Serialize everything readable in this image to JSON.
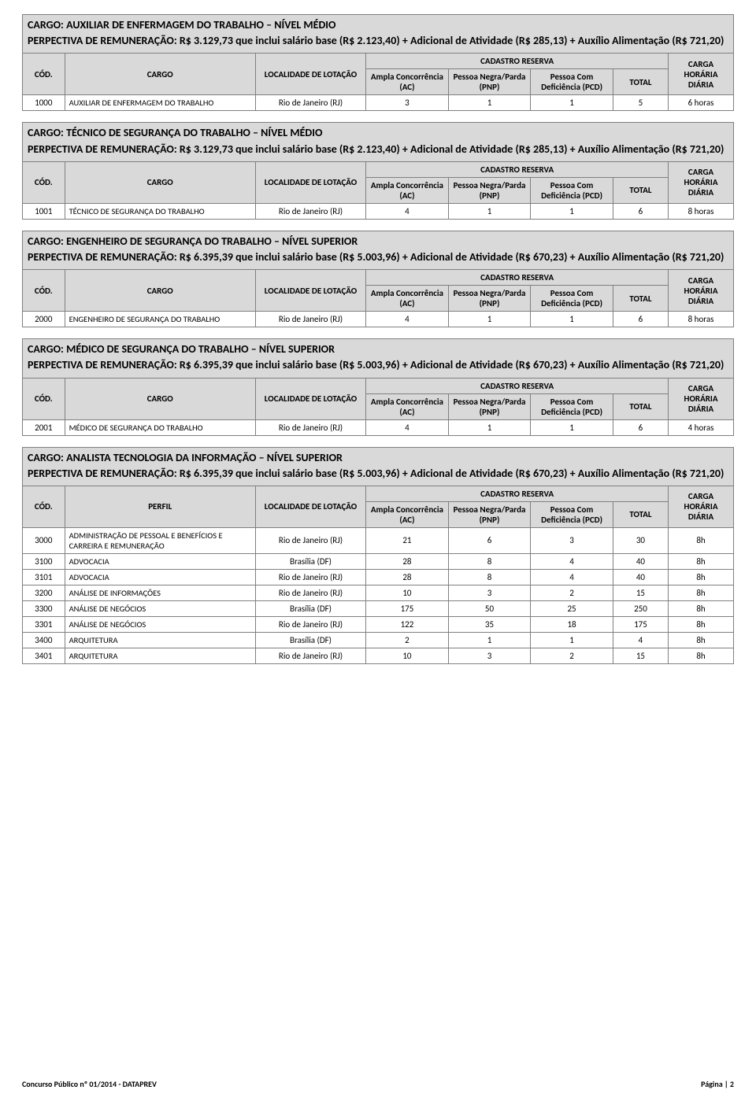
{
  "sections": [
    {
      "title_lines": [
        "CARGO: AUXILIAR DE ENFERMAGEM DO TRABALHO – NÍVEL MÉDIO",
        "PERPECTIVA DE REMUNERAÇÃO: R$ 3.129,73 que inclui salário base (R$ 2.123,40) + Adicional de Atividade (R$ 285,13) + Auxílio Alimentação (R$ 721,20)"
      ],
      "col2_label": "CARGO",
      "rows": [
        {
          "cod": "1000",
          "cargo": "AUXILIAR DE ENFERMAGEM DO TRABALHO",
          "loc": "Rio de Janeiro (RJ)",
          "ac": "3",
          "pnp": "1",
          "pcd": "1",
          "total": "5",
          "ch": "6 horas"
        }
      ]
    },
    {
      "title_lines": [
        "CARGO: TÉCNICO DE SEGURANÇA DO TRABALHO – NÍVEL MÉDIO",
        "PERPECTIVA DE REMUNERAÇÃO: R$ 3.129,73 que inclui salário base (R$ 2.123,40) + Adicional de Atividade (R$ 285,13) + Auxílio Alimentação (R$ 721,20)"
      ],
      "col2_label": "CARGO",
      "rows": [
        {
          "cod": "1001",
          "cargo": "TÉCNICO DE SEGURANÇA DO TRABALHO",
          "loc": "Rio de Janeiro (RJ)",
          "ac": "4",
          "pnp": "1",
          "pcd": "1",
          "total": "6",
          "ch": "8 horas"
        }
      ]
    },
    {
      "title_lines": [
        "CARGO: ENGENHEIRO DE SEGURANÇA DO TRABALHO – NÍVEL SUPERIOR",
        "PERPECTIVA DE REMUNERAÇÃO: R$ 6.395,39 que inclui salário base (R$ 5.003,96) + Adicional de Atividade (R$ 670,23) + Auxílio Alimentação (R$ 721,20)"
      ],
      "col2_label": "CARGO",
      "rows": [
        {
          "cod": "2000",
          "cargo": "ENGENHEIRO DE SEGURANÇA DO TRABALHO",
          "loc": "Rio de Janeiro (RJ)",
          "ac": "4",
          "pnp": "1",
          "pcd": "1",
          "total": "6",
          "ch": "8 horas"
        }
      ]
    },
    {
      "title_lines": [
        "CARGO: MÉDICO DE SEGURANÇA DO TRABALHO – NÍVEL SUPERIOR",
        "PERPECTIVA DE REMUNERAÇÃO: R$ 6.395,39 que inclui salário base (R$ 5.003,96) + Adicional de Atividade (R$ 670,23) + Auxílio Alimentação (R$ 721,20)"
      ],
      "col2_label": "CARGO",
      "rows": [
        {
          "cod": "2001",
          "cargo": "MÉDICO DE SEGURANÇA DO TRABALHO",
          "loc": "Rio de Janeiro (RJ)",
          "ac": "4",
          "pnp": "1",
          "pcd": "1",
          "total": "6",
          "ch": "4 horas"
        }
      ]
    },
    {
      "title_lines": [
        "CARGO: ANALISTA TECNOLOGIA DA INFORMAÇÃO – NÍVEL SUPERIOR",
        "PERPECTIVA DE REMUNERAÇÃO: R$ 6.395,39 que inclui salário base (R$ 5.003,96) + Adicional de Atividade (R$ 670,23) + Auxílio Alimentação (R$ 721,20)"
      ],
      "col2_label": "PERFIL",
      "rows": [
        {
          "cod": "3000",
          "cargo": "ADMINISTRAÇÃO DE PESSOAL E BENEFÍCIOS E CARREIRA E REMUNERAÇÃO",
          "loc": "Rio de Janeiro (RJ)",
          "ac": "21",
          "pnp": "6",
          "pcd": "3",
          "total": "30",
          "ch": "8h"
        },
        {
          "cod": "3100",
          "cargo": "ADVOCACIA",
          "loc": "Brasília (DF)",
          "ac": "28",
          "pnp": "8",
          "pcd": "4",
          "total": "40",
          "ch": "8h"
        },
        {
          "cod": "3101",
          "cargo": "ADVOCACIA",
          "loc": "Rio de Janeiro (RJ)",
          "ac": "28",
          "pnp": "8",
          "pcd": "4",
          "total": "40",
          "ch": "8h"
        },
        {
          "cod": "3200",
          "cargo": "ANÁLISE DE INFORMAÇÕES",
          "loc": "Rio de Janeiro (RJ)",
          "ac": "10",
          "pnp": "3",
          "pcd": "2",
          "total": "15",
          "ch": "8h"
        },
        {
          "cod": "3300",
          "cargo": "ANÁLISE DE NEGÓCIOS",
          "loc": "Brasília (DF)",
          "ac": "175",
          "pnp": "50",
          "pcd": "25",
          "total": "250",
          "ch": "8h"
        },
        {
          "cod": "3301",
          "cargo": "ANÁLISE DE NEGÓCIOS",
          "loc": "Rio de Janeiro (RJ)",
          "ac": "122",
          "pnp": "35",
          "pcd": "18",
          "total": "175",
          "ch": "8h"
        },
        {
          "cod": "3400",
          "cargo": "ARQUITETURA",
          "loc": "Brasília (DF)",
          "ac": "2",
          "pnp": "1",
          "pcd": "1",
          "total": "4",
          "ch": "8h"
        },
        {
          "cod": "3401",
          "cargo": "ARQUITETURA",
          "loc": "Rio de Janeiro (RJ)",
          "ac": "10",
          "pnp": "3",
          "pcd": "2",
          "total": "15",
          "ch": "8h"
        }
      ]
    }
  ],
  "headers": {
    "cod": "CÓD.",
    "loc": "LOCALIDADE DE LOTAÇÃO",
    "cadastro": "CADASTRO RESERVA",
    "ac": "Ampla Concorrência (AC)",
    "pnp": "Pessoa Negra/Parda (PNP)",
    "pcd": "Pessoa Com Deficiência (PCD)",
    "total": "TOTAL",
    "ch": "CARGA HORÁRIA DIÁRIA"
  },
  "footer": {
    "left": "Concurso Público nº 01/2014 - DATAPREV",
    "right": "Página | 2"
  },
  "colors": {
    "header_bg": "#d9d9d9",
    "border": "#7f7f7f",
    "text": "#000000",
    "page_bg": "#ffffff"
  }
}
